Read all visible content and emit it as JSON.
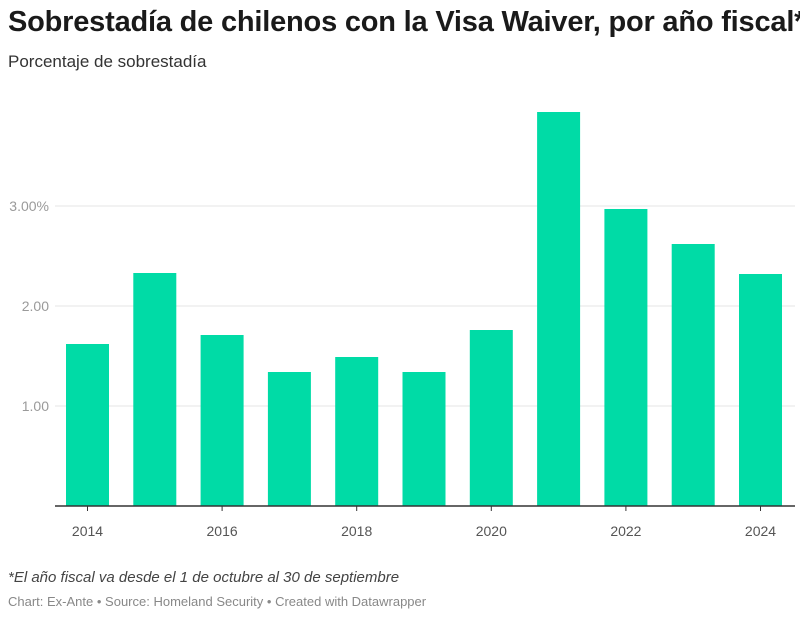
{
  "title": "Sobrestadía de chilenos con la Visa Waiver, por año fiscal*",
  "subtitle": "Porcentaje de sobrestadía",
  "note": "*El año fiscal va desde el 1 de octubre al 30 de septiembre",
  "footer": {
    "chart": "Chart: Ex-Ante",
    "sep1": " • ",
    "source": "Source: Homeland Security",
    "sep2": " • ",
    "created": "Created with Datawrapper"
  },
  "colors": {
    "bar": "#00dba6",
    "grid": "#e4e4e4",
    "axis": "#333333",
    "tick_label": "#9a9a9a",
    "x_label": "#555555"
  },
  "chart_data": {
    "type": "bar",
    "title": "Sobrestadía de chilenos con la Visa Waiver, por año fiscal*",
    "ylabel": "Porcentaje de sobrestadía",
    "xlabel": "",
    "categories": [
      "2014",
      "2015",
      "2016",
      "2017",
      "2018",
      "2019",
      "2020",
      "2021",
      "2022",
      "2023",
      "2024"
    ],
    "values": [
      1.62,
      2.33,
      1.71,
      1.34,
      1.49,
      1.34,
      1.76,
      3.94,
      2.97,
      2.62,
      2.32
    ],
    "ylim": [
      0,
      4.0
    ],
    "yticks": [
      {
        "value": 1,
        "label": "1.00"
      },
      {
        "value": 2,
        "label": "2.00"
      },
      {
        "value": 3,
        "label": "3.00%"
      }
    ],
    "xtick_labels": [
      "2014",
      "2016",
      "2018",
      "2020",
      "2022",
      "2024"
    ],
    "grid": true
  }
}
